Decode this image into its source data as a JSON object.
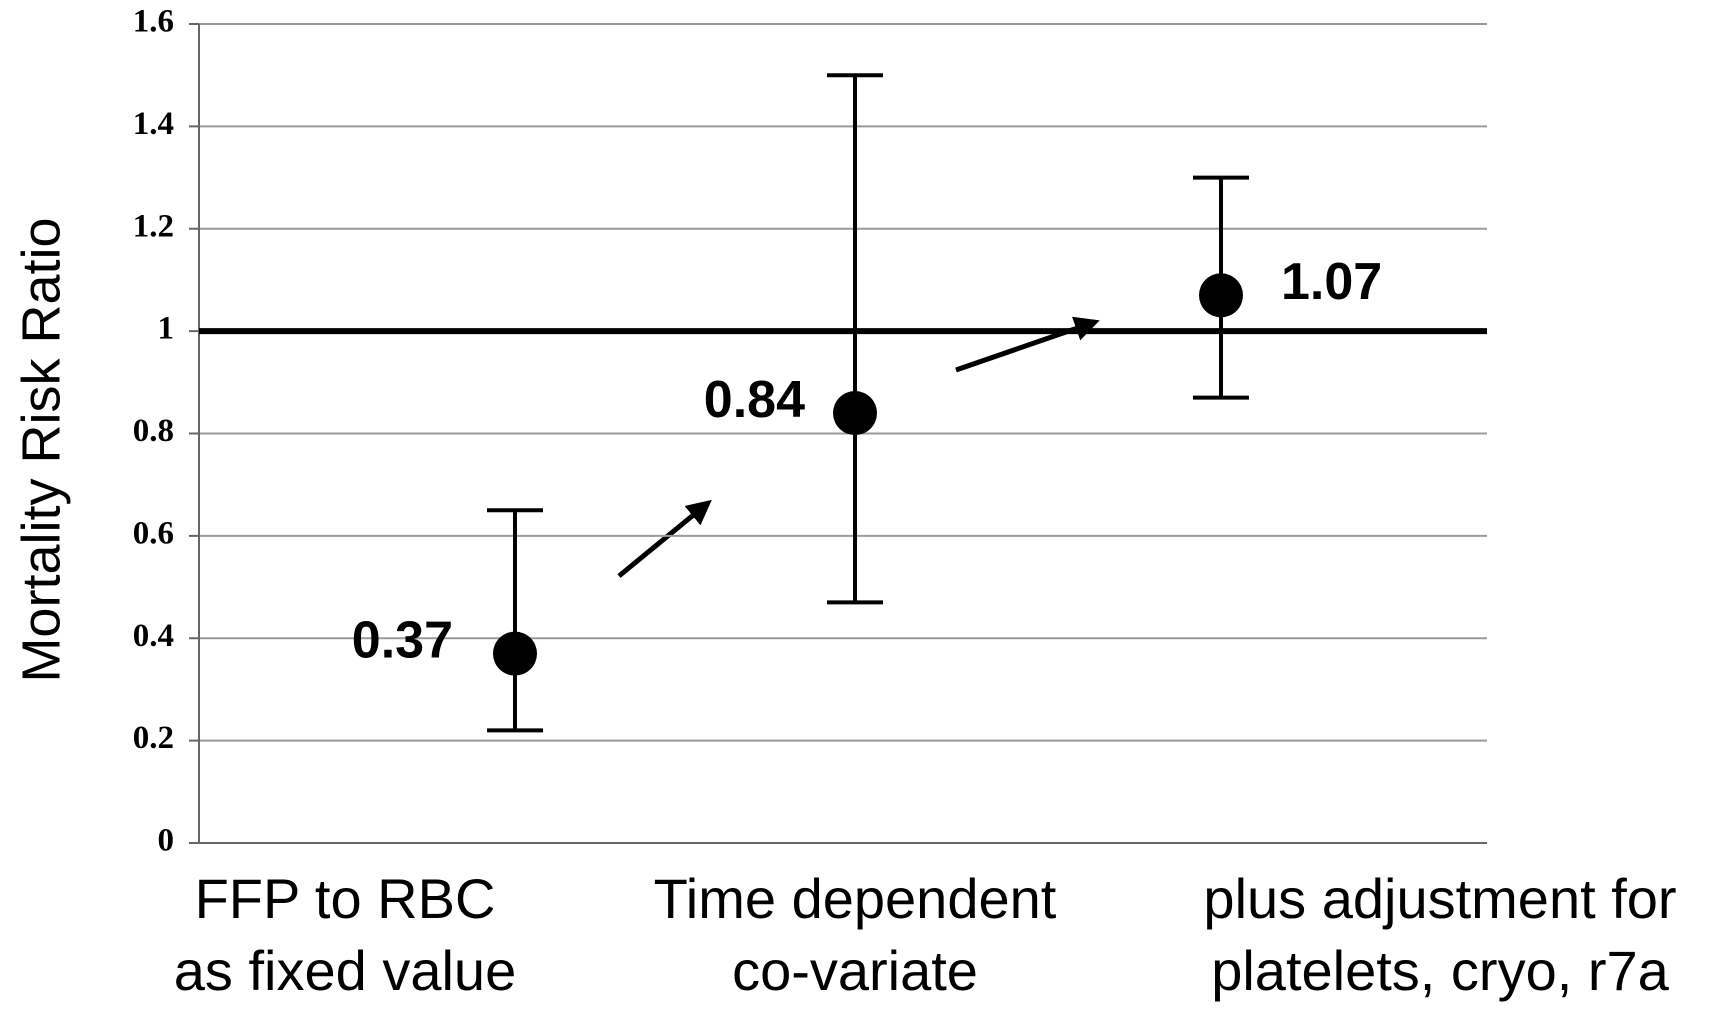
{
  "chart_data": {
    "type": "errorbar",
    "y_label": "Mortality Risk Ratio",
    "categories": [
      [
        "FFP to RBC",
        "as fixed value"
      ],
      [
        "Time dependent",
        "co-variate"
      ],
      [
        "plus adjustment for",
        "platelets, cryo, r7a"
      ]
    ],
    "values": [
      0.37,
      0.84,
      1.07
    ],
    "error_low": [
      0.22,
      0.47,
      0.87
    ],
    "error_high": [
      0.65,
      1.5,
      1.3
    ],
    "reference_line": 1,
    "color": "#000000",
    "ylim": [
      0,
      1.6
    ],
    "yticks": [
      0,
      0.2,
      0.4,
      0.6,
      0.8,
      1,
      1.2,
      1.4,
      1.6
    ],
    "grid": true
  }
}
